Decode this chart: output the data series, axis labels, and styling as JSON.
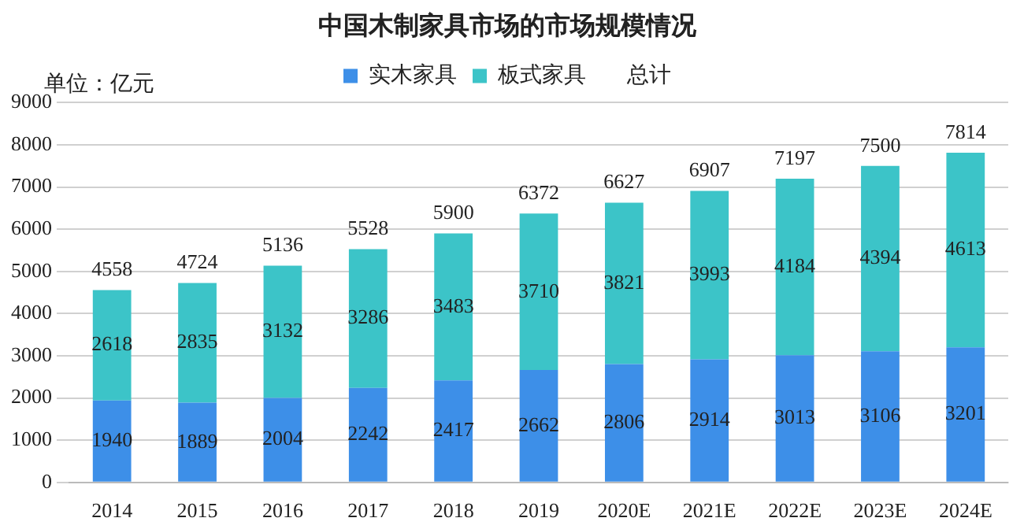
{
  "chart_data": {
    "type": "bar",
    "title": "中国木制家具市场的市场规模情况",
    "annotations": [
      "单位：亿元"
    ],
    "categories": [
      "2014",
      "2015",
      "2016",
      "2017",
      "2018",
      "2019",
      "2020E",
      "2021E",
      "2022E",
      "2023E",
      "2024E"
    ],
    "stacked": true,
    "data_labels": true,
    "grid": "y",
    "legend": "top",
    "ylim": [
      0,
      9000
    ],
    "yticks": [
      0,
      1000,
      2000,
      3000,
      4000,
      5000,
      6000,
      7000,
      8000,
      9000
    ],
    "series": [
      {
        "name": "实木家具",
        "color": "#3d8fe8",
        "values": [
          1940,
          1889,
          2004,
          2242,
          2417,
          2662,
          2806,
          2914,
          3013,
          3106,
          3201
        ]
      },
      {
        "name": "板式家具",
        "color": "#3cc4c8",
        "values": [
          2618,
          2835,
          3132,
          3286,
          3483,
          3710,
          3821,
          3993,
          4184,
          4394,
          4613
        ]
      }
    ],
    "legend_title": "总计",
    "totals": [
      "4558",
      "4724",
      "5136",
      "5528",
      "5900",
      "6372",
      "6627",
      "6907",
      "7197",
      "7500",
      "7814"
    ]
  }
}
